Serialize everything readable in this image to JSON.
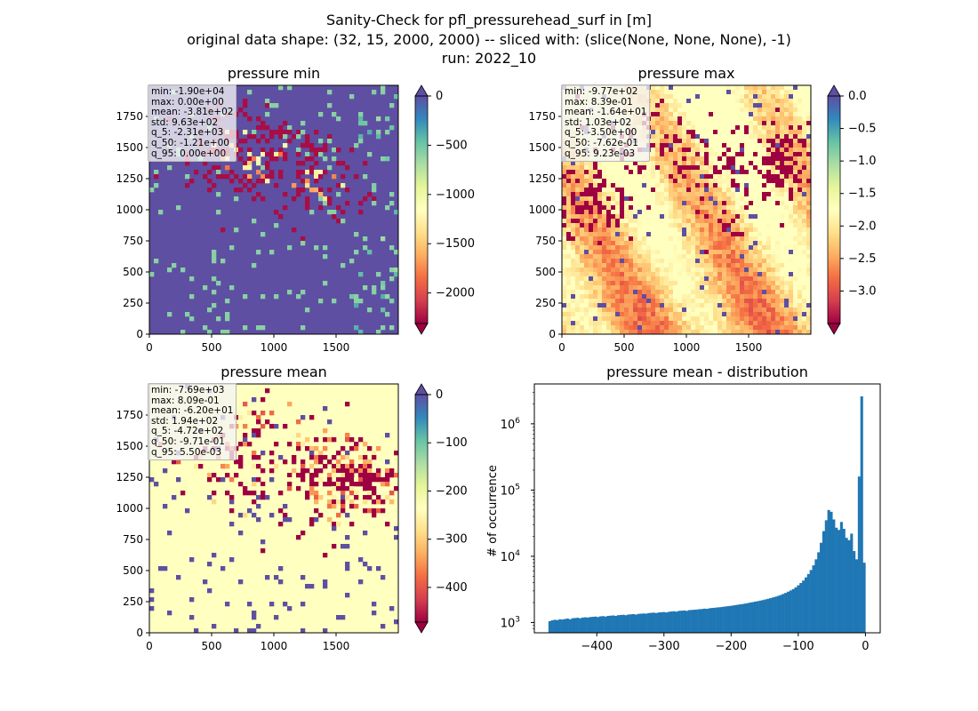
{
  "figure": {
    "title_lines": [
      "Sanity-Check for pfl_pressurehead_surf in [m]",
      "original data shape: (32, 15, 2000, 2000) -- sliced with: (slice(None, None, None), -1)",
      "run: 2022_10"
    ]
  },
  "chart_data": [
    {
      "type": "heatmap",
      "title": "pressure min",
      "colormap": "Spectral",
      "xlim": [
        0,
        2000
      ],
      "ylim": [
        0,
        2000
      ],
      "x_ticks": [
        0,
        500,
        1000,
        1500
      ],
      "y_ticks": [
        0,
        250,
        500,
        750,
        1000,
        1250,
        1500,
        1750
      ],
      "colorbar": {
        "range": [
          -2310,
          0
        ],
        "ticks": [
          0,
          -500,
          -1000,
          -1500,
          -2000
        ],
        "tick_labels": [
          "0",
          "−500",
          "−1000",
          "−1500",
          "−2000"
        ],
        "extend": "both"
      },
      "stats": [
        "min: -1.90e+04",
        "max: 0.00e+00",
        "mean: -3.81e+02",
        "std: 9.63e+02",
        "q_5: -2.31e+03",
        "q_50: -1.21e+00",
        "q_95: 0.00e+00"
      ]
    },
    {
      "type": "heatmap",
      "title": "pressure max",
      "colormap": "Spectral",
      "xlim": [
        0,
        2000
      ],
      "ylim": [
        0,
        2000
      ],
      "x_ticks": [
        0,
        500,
        1000,
        1500
      ],
      "y_ticks": [
        0,
        250,
        500,
        750,
        1000,
        1250,
        1500,
        1750
      ],
      "colorbar": {
        "range": [
          -3.5,
          0.0
        ],
        "ticks": [
          0.0,
          -0.5,
          -1.0,
          -1.5,
          -2.0,
          -2.5,
          -3.0
        ],
        "tick_labels": [
          "0.0",
          "−0.5",
          "−1.0",
          "−1.5",
          "−2.0",
          "−2.5",
          "−3.0"
        ],
        "extend": "both"
      },
      "stats": [
        "min: -9.77e+02",
        "max: 8.39e-01",
        "mean: -1.64e+01",
        "std: 1.03e+02",
        "q_5: -3.50e+00",
        "q_50: -7.62e-01",
        "q_95: 9.23e-03"
      ]
    },
    {
      "type": "heatmap",
      "title": "pressure mean",
      "colormap": "Spectral",
      "xlim": [
        0,
        2000
      ],
      "ylim": [
        0,
        2000
      ],
      "x_ticks": [
        0,
        500,
        1000,
        1500
      ],
      "y_ticks": [
        0,
        250,
        500,
        750,
        1000,
        1250,
        1500,
        1750
      ],
      "colorbar": {
        "range": [
          -472,
          0
        ],
        "ticks": [
          0,
          -100,
          -200,
          -300,
          -400
        ],
        "tick_labels": [
          "0",
          "−100",
          "−200",
          "−300",
          "−400"
        ],
        "extend": "both"
      },
      "stats": [
        "min: -7.69e+03",
        "max: 8.09e-01",
        "mean: -6.20e+01",
        "std: 1.94e+02",
        "q_5: -4.72e+02",
        "q_50: -9.71e-01",
        "q_95: 5.50e-03"
      ]
    },
    {
      "type": "bar",
      "title": "pressure mean - distribution",
      "ylabel": "# of occurrence",
      "yscale": "log",
      "color": "#1f77b4",
      "xlim": [
        -493,
        22
      ],
      "ylim": [
        700,
        4000000
      ],
      "x_ticks": [
        -400,
        -300,
        -200,
        -100,
        0
      ],
      "x_tick_labels": [
        "−400",
        "−300",
        "−200",
        "−100",
        "0"
      ],
      "y_ticks": [
        1000,
        10000,
        100000,
        1000000
      ],
      "y_tick_labels": [
        "10",
        "10",
        "10",
        "10"
      ],
      "y_tick_exponents": [
        "3",
        "4",
        "5",
        "6"
      ],
      "bins": {
        "start": -472,
        "end": 0
      },
      "bin_counts": [
        1050,
        1080,
        1100,
        1090,
        1120,
        1110,
        1130,
        1150,
        1120,
        1160,
        1170,
        1180,
        1160,
        1190,
        1200,
        1190,
        1210,
        1220,
        1230,
        1210,
        1240,
        1250,
        1230,
        1260,
        1270,
        1280,
        1260,
        1290,
        1300,
        1310,
        1290,
        1320,
        1330,
        1340,
        1320,
        1350,
        1360,
        1370,
        1360,
        1390,
        1400,
        1410,
        1390,
        1420,
        1430,
        1440,
        1420,
        1450,
        1470,
        1480,
        1460,
        1500,
        1510,
        1520,
        1500,
        1540,
        1550,
        1560,
        1570,
        1590,
        1600,
        1620,
        1610,
        1640,
        1660,
        1670,
        1690,
        1700,
        1720,
        1740,
        1760,
        1780,
        1800,
        1830,
        1850,
        1880,
        1900,
        1930,
        1960,
        2000,
        2030,
        2070,
        2100,
        2140,
        2180,
        2230,
        2280,
        2330,
        2390,
        2450,
        2520,
        2600,
        2700,
        2800,
        2920,
        3050,
        3200,
        3400,
        3650,
        3950,
        4300,
        4800,
        5400,
        6200,
        7300,
        9000,
        11500,
        16000,
        24000,
        35000,
        50000,
        47000,
        36000,
        27000,
        25000,
        33000,
        26000,
        19000,
        17500,
        22000,
        12000,
        9000,
        160000,
        2600000,
        8000
      ]
    }
  ]
}
